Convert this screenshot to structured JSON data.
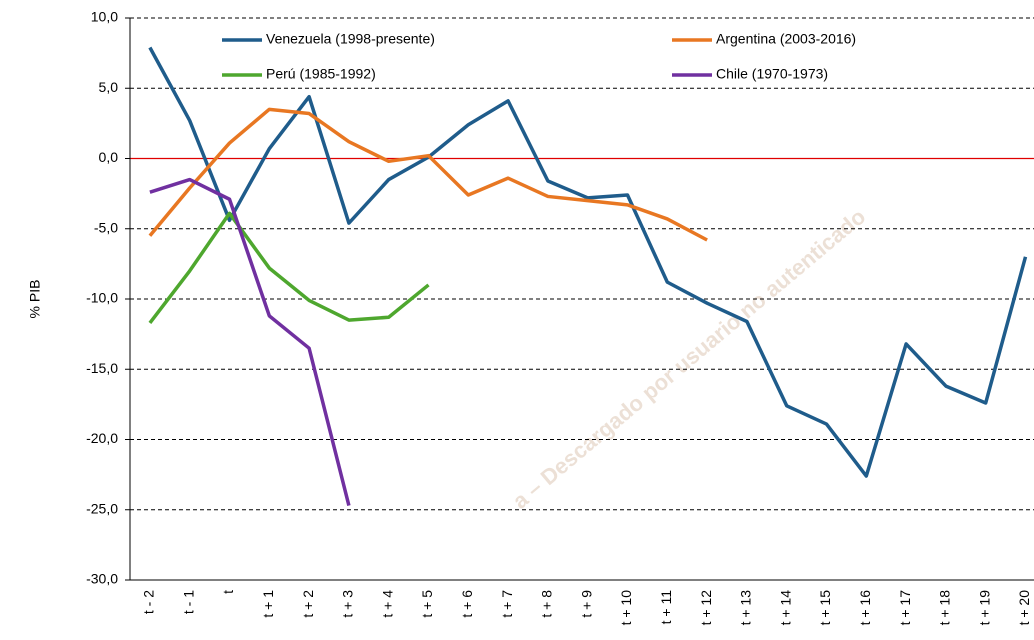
{
  "chart_data": {
    "type": "line",
    "y_axis_label": "% PIB",
    "watermark": "a – Descargado por usuario no autenticado",
    "categories": [
      "t - 2",
      "t - 1",
      "t",
      "t + 1",
      "t + 2",
      "t + 3",
      "t + 4",
      "t + 5",
      "t + 6",
      "t + 7",
      "t + 8",
      "t + 9",
      "t + 10",
      "t + 11",
      "t + 12",
      "t + 13",
      "t + 14",
      "t + 15",
      "t + 16",
      "t + 17",
      "t + 18",
      "t + 19",
      "t + 20"
    ],
    "series": [
      {
        "name": "Venezuela (1998-presente)",
        "color": "#1f5c8b",
        "values": [
          7.9,
          2.7,
          -4.4,
          0.7,
          4.4,
          -4.6,
          -1.5,
          0.1,
          2.4,
          4.1,
          -1.6,
          -2.8,
          -2.6,
          -8.8,
          -10.3,
          -11.6,
          -17.6,
          -18.9,
          -22.6,
          -13.2,
          -16.2,
          -17.4,
          -7.0
        ]
      },
      {
        "name": "Argentina (2003-2016)",
        "color": "#e87722",
        "values": [
          -5.5,
          -2.1,
          1.1,
          3.5,
          3.2,
          1.2,
          -0.2,
          0.2,
          -2.6,
          -1.4,
          -2.7,
          -3.0,
          -3.3,
          -4.3,
          -5.8,
          null,
          null,
          null,
          null,
          null,
          null,
          null,
          null
        ]
      },
      {
        "name": "Perú (1985-1992)",
        "color": "#4ea72e",
        "values": [
          -11.7,
          -8.0,
          -3.9,
          -7.8,
          -10.1,
          -11.5,
          -11.3,
          -9.0,
          null,
          null,
          null,
          null,
          null,
          null,
          null,
          null,
          null,
          null,
          null,
          null,
          null,
          null,
          null
        ]
      },
      {
        "name": "Chile (1970-1973)",
        "color": "#7030a0",
        "values": [
          -2.4,
          -1.5,
          -2.9,
          -11.2,
          -13.5,
          -24.7,
          null,
          null,
          null,
          null,
          null,
          null,
          null,
          null,
          null,
          null,
          null,
          null,
          null,
          null,
          null,
          null,
          null
        ]
      }
    ],
    "ylim": [
      -30,
      10
    ],
    "yticks": [
      {
        "value": -30,
        "label": "-30,0"
      },
      {
        "value": -25,
        "label": "-25,0"
      },
      {
        "value": -20,
        "label": "-20,0"
      },
      {
        "value": -15,
        "label": "-15,0"
      },
      {
        "value": -10,
        "label": "-10,0"
      },
      {
        "value": -5,
        "label": "-5,0"
      },
      {
        "value": 0,
        "label": "0,0"
      },
      {
        "value": 5,
        "label": "5,0"
      },
      {
        "value": 10,
        "label": "10,0"
      }
    ],
    "grid": true,
    "reference_line": {
      "y": 0,
      "color": "#e00000"
    },
    "legend": "top"
  }
}
